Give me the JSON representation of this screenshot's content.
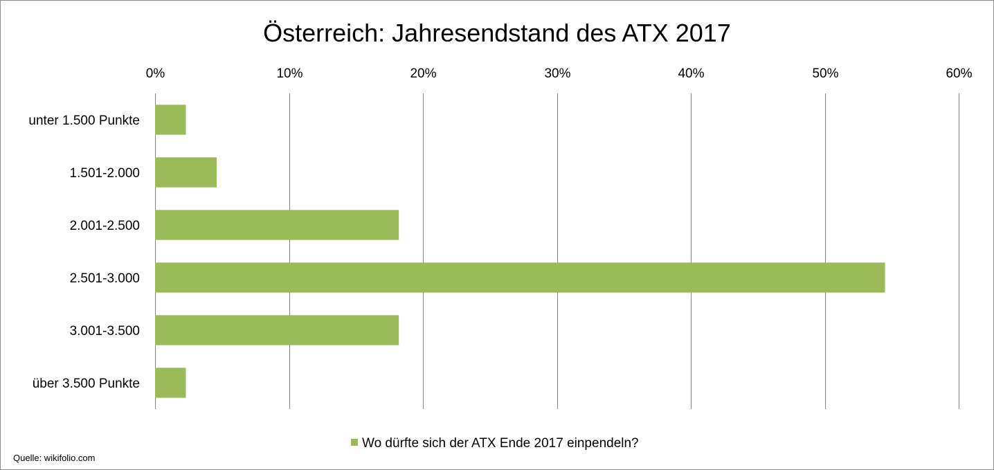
{
  "chart_data": {
    "type": "bar",
    "orientation": "horizontal",
    "title": "Österreich: Jahresendstand des ATX 2017",
    "categories": [
      "unter 1.500 Punkte",
      "1.501-2.000",
      "2.001-2.500",
      "2.501-3.000",
      "3.001-3.500",
      "über 3.500 Punkte"
    ],
    "series": [
      {
        "name": "Wo dürfte sich der ATX Ende 2017 einpendeln?",
        "values": [
          0.023,
          0.046,
          0.182,
          0.545,
          0.182,
          0.023
        ],
        "color": "#9bbb59"
      }
    ],
    "x_ticks": [
      "0%",
      "10%",
      "20%",
      "30%",
      "40%",
      "50%",
      "60%"
    ],
    "xlim": [
      0,
      0.6
    ],
    "x_axis_position": "top",
    "grid": true,
    "legend_position": "bottom"
  },
  "source": "Quelle: wikifolio.com"
}
